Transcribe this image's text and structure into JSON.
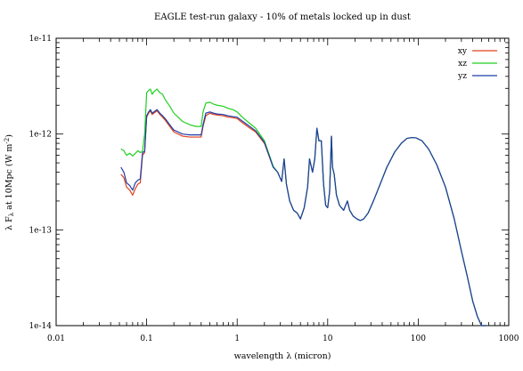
{
  "chart_data": {
    "type": "line",
    "title": "EAGLE test-run galaxy - 10% of metals locked up in dust",
    "xlabel": "wavelength λ (micron)",
    "ylabel": "λ Fλ at 10Mpc (W m-2)",
    "ylabel_parts": {
      "pre": "λ F",
      "sub": "λ",
      "mid": " at 10Mpc (W m",
      "sup": "-2",
      "post": ")"
    },
    "xscale": "log",
    "yscale": "log",
    "xlim": [
      0.01,
      1000
    ],
    "ylim": [
      1e-14,
      1e-11
    ],
    "grid": false,
    "legend_position": "top-right",
    "x_ticks": [
      {
        "value": 0.01,
        "label": "0.01"
      },
      {
        "value": 0.1,
        "label": "0.1"
      },
      {
        "value": 1,
        "label": "1"
      },
      {
        "value": 10,
        "label": "10"
      },
      {
        "value": 100,
        "label": "100"
      },
      {
        "value": 1000,
        "label": "1000"
      }
    ],
    "y_ticks": [
      {
        "value": 1e-14,
        "label": "1e-14"
      },
      {
        "value": 1e-13,
        "label": "1e-13"
      },
      {
        "value": 1e-12,
        "label": "1e-12"
      },
      {
        "value": 1e-11,
        "label": "1e-11"
      }
    ],
    "series": [
      {
        "name": "xy",
        "color": "#e0401a",
        "x": [
          0.052,
          0.056,
          0.06,
          0.065,
          0.07,
          0.075,
          0.08,
          0.085,
          0.09,
          0.095,
          0.1,
          0.105,
          0.11,
          0.115,
          0.12,
          0.13,
          0.14,
          0.15,
          0.16,
          0.18,
          0.2,
          0.25,
          0.3,
          0.35,
          0.4,
          0.42,
          0.45,
          0.5,
          0.55,
          0.6,
          0.7,
          0.8,
          0.9,
          1.0,
          1.1,
          1.3,
          1.6,
          2.0,
          2.5,
          2.8,
          3.1,
          3.3,
          3.5,
          3.8,
          4.2,
          4.6,
          5.0,
          5.5,
          6.0,
          6.3,
          6.8,
          7.2,
          7.6,
          8.0,
          8.5,
          9.0,
          9.5,
          10.0,
          10.5,
          11.0,
          11.3,
          11.8,
          12.5,
          13.5,
          15.0,
          16.5,
          17.5,
          19.0,
          21.0,
          23.0,
          25.0,
          28.0,
          32.0,
          38.0,
          45.0,
          55.0,
          65.0,
          75.0,
          85.0,
          95.0,
          110.0,
          130.0,
          160.0,
          200.0,
          250.0,
          300.0,
          350.0,
          400.0,
          450.0,
          500.0,
          560.0
        ],
        "y": [
          3.8e-13,
          3.5e-13,
          2.8e-13,
          2.6e-13,
          2.3e-13,
          2.7e-13,
          3e-13,
          3.1e-13,
          6e-13,
          6.4e-13,
          1.5e-12,
          1.65e-12,
          1.75e-12,
          1.6e-12,
          1.65e-12,
          1.75e-12,
          1.6e-12,
          1.5e-12,
          1.4e-12,
          1.2e-12,
          1.05e-12,
          9.5e-13,
          9.3e-13,
          9.3e-13,
          9.3e-13,
          1.2e-12,
          1.55e-12,
          1.65e-12,
          1.6e-12,
          1.58e-12,
          1.55e-12,
          1.5e-12,
          1.48e-12,
          1.45e-12,
          1.35e-12,
          1.2e-12,
          1.05e-12,
          8e-13,
          4.5e-13,
          4e-13,
          3.2e-13,
          5.5e-13,
          3e-13,
          2e-13,
          1.6e-13,
          1.5e-13,
          1.3e-13,
          1.7e-13,
          2.8e-13,
          5.5e-13,
          4e-13,
          5.5e-13,
          1.15e-12,
          8.5e-13,
          8.5e-13,
          3e-13,
          1.8e-13,
          1.7e-13,
          2.5e-13,
          9.5e-13,
          4.5e-13,
          3.8e-13,
          2.3e-13,
          1.8e-13,
          1.6e-13,
          2e-13,
          1.6e-13,
          1.4e-13,
          1.3e-13,
          1.25e-13,
          1.3e-13,
          1.5e-13,
          2e-13,
          3e-13,
          4.5e-13,
          6.5e-13,
          8e-13,
          9e-13,
          9.2e-13,
          9.1e-13,
          8.5e-13,
          7e-13,
          4.8e-13,
          2.8e-13,
          1.3e-13,
          6e-14,
          3.2e-14,
          1.8e-14,
          1.25e-14,
          1e-14,
          7e-15
        ]
      },
      {
        "name": "xz",
        "color": "#1fd11f",
        "x": [
          0.052,
          0.056,
          0.06,
          0.065,
          0.07,
          0.075,
          0.08,
          0.085,
          0.09,
          0.095,
          0.1,
          0.105,
          0.11,
          0.115,
          0.12,
          0.13,
          0.14,
          0.15,
          0.16,
          0.18,
          0.2,
          0.25,
          0.3,
          0.35,
          0.4,
          0.42,
          0.45,
          0.5,
          0.55,
          0.6,
          0.7,
          0.8,
          0.9,
          1.0,
          1.1,
          1.3,
          1.6,
          2.0,
          2.5,
          2.8,
          3.1,
          3.3,
          3.5,
          3.8,
          4.2,
          4.6,
          5.0,
          5.5,
          6.0,
          6.3,
          6.8,
          7.2,
          7.6,
          8.0,
          8.5,
          9.0,
          9.5,
          10.0,
          10.5,
          11.0,
          11.3,
          11.8,
          12.5,
          13.5,
          15.0,
          16.5,
          17.5,
          19.0,
          21.0,
          23.0,
          25.0,
          28.0,
          32.0,
          38.0,
          45.0,
          55.0,
          65.0,
          75.0,
          85.0,
          95.0,
          110.0,
          130.0,
          160.0,
          200.0,
          250.0,
          300.0,
          350.0,
          400.0,
          450.0,
          500.0,
          560.0
        ],
        "y": [
          7e-13,
          6.7e-13,
          6e-13,
          6.3e-13,
          5.9e-13,
          6.3e-13,
          6.7e-13,
          6.4e-13,
          6.6e-13,
          1e-12,
          2.7e-12,
          2.85e-12,
          2.95e-12,
          2.6e-12,
          2.75e-12,
          2.95e-12,
          2.7e-12,
          2.6e-12,
          2.3e-12,
          1.95e-12,
          1.65e-12,
          1.35e-12,
          1.25e-12,
          1.2e-12,
          1.2e-12,
          1.7e-12,
          2.1e-12,
          2.15e-12,
          2.05e-12,
          2e-12,
          1.95e-12,
          1.85e-12,
          1.8e-12,
          1.7e-12,
          1.55e-12,
          1.35e-12,
          1.15e-12,
          8.5e-13,
          4.6e-13,
          4e-13,
          3.2e-13,
          5.5e-13,
          3e-13,
          2e-13,
          1.6e-13,
          1.5e-13,
          1.3e-13,
          1.7e-13,
          2.8e-13,
          5.5e-13,
          4e-13,
          5.5e-13,
          1.15e-12,
          8.5e-13,
          8.5e-13,
          3e-13,
          1.8e-13,
          1.7e-13,
          2.5e-13,
          9.5e-13,
          4.5e-13,
          3.8e-13,
          2.3e-13,
          1.8e-13,
          1.6e-13,
          2e-13,
          1.6e-13,
          1.4e-13,
          1.3e-13,
          1.25e-13,
          1.3e-13,
          1.5e-13,
          2e-13,
          3e-13,
          4.5e-13,
          6.5e-13,
          8e-13,
          9e-13,
          9.2e-13,
          9.1e-13,
          8.5e-13,
          7e-13,
          4.8e-13,
          2.8e-13,
          1.3e-13,
          6e-14,
          3.2e-14,
          1.8e-14,
          1.25e-14,
          1e-14,
          7e-15
        ]
      },
      {
        "name": "yz",
        "color": "#1c3fa8",
        "x": [
          0.052,
          0.056,
          0.06,
          0.065,
          0.07,
          0.075,
          0.08,
          0.085,
          0.09,
          0.095,
          0.1,
          0.105,
          0.11,
          0.115,
          0.12,
          0.13,
          0.14,
          0.15,
          0.16,
          0.18,
          0.2,
          0.25,
          0.3,
          0.35,
          0.4,
          0.42,
          0.45,
          0.5,
          0.55,
          0.6,
          0.7,
          0.8,
          0.9,
          1.0,
          1.1,
          1.3,
          1.6,
          2.0,
          2.5,
          2.8,
          3.1,
          3.3,
          3.5,
          3.8,
          4.2,
          4.6,
          5.0,
          5.5,
          6.0,
          6.3,
          6.8,
          7.2,
          7.6,
          8.0,
          8.5,
          9.0,
          9.5,
          10.0,
          10.5,
          11.0,
          11.3,
          11.8,
          12.5,
          13.5,
          15.0,
          16.5,
          17.5,
          19.0,
          21.0,
          23.0,
          25.0,
          28.0,
          32.0,
          38.0,
          45.0,
          55.0,
          65.0,
          75.0,
          85.0,
          95.0,
          110.0,
          130.0,
          160.0,
          200.0,
          250.0,
          300.0,
          350.0,
          400.0,
          450.0,
          500.0,
          560.0
        ],
        "y": [
          4.5e-13,
          4e-13,
          3.1e-13,
          2.9e-13,
          2.6e-13,
          3.1e-13,
          3.3e-13,
          3.4e-13,
          6.4e-13,
          6.6e-13,
          1.55e-12,
          1.7e-12,
          1.8e-12,
          1.65e-12,
          1.7e-12,
          1.8e-12,
          1.65e-12,
          1.55e-12,
          1.45e-12,
          1.25e-12,
          1.1e-12,
          1e-12,
          9.8e-13,
          9.8e-13,
          9.8e-13,
          1.25e-12,
          1.65e-12,
          1.7e-12,
          1.65e-12,
          1.62e-12,
          1.6e-12,
          1.55e-12,
          1.52e-12,
          1.5e-12,
          1.4e-12,
          1.25e-12,
          1.08e-12,
          8.2e-13,
          4.5e-13,
          4e-13,
          3.2e-13,
          5.5e-13,
          3e-13,
          2e-13,
          1.6e-13,
          1.5e-13,
          1.3e-13,
          1.7e-13,
          2.8e-13,
          5.5e-13,
          4e-13,
          5.5e-13,
          1.15e-12,
          8.5e-13,
          8.5e-13,
          3e-13,
          1.8e-13,
          1.7e-13,
          2.5e-13,
          9.5e-13,
          4.5e-13,
          3.8e-13,
          2.3e-13,
          1.8e-13,
          1.6e-13,
          2e-13,
          1.6e-13,
          1.4e-13,
          1.3e-13,
          1.25e-13,
          1.3e-13,
          1.5e-13,
          2e-13,
          3e-13,
          4.5e-13,
          6.5e-13,
          8e-13,
          9e-13,
          9.2e-13,
          9.1e-13,
          8.5e-13,
          7e-13,
          4.8e-13,
          2.8e-13,
          1.3e-13,
          6e-14,
          3.2e-14,
          1.8e-14,
          1.25e-14,
          1e-14,
          7e-15
        ]
      }
    ]
  }
}
